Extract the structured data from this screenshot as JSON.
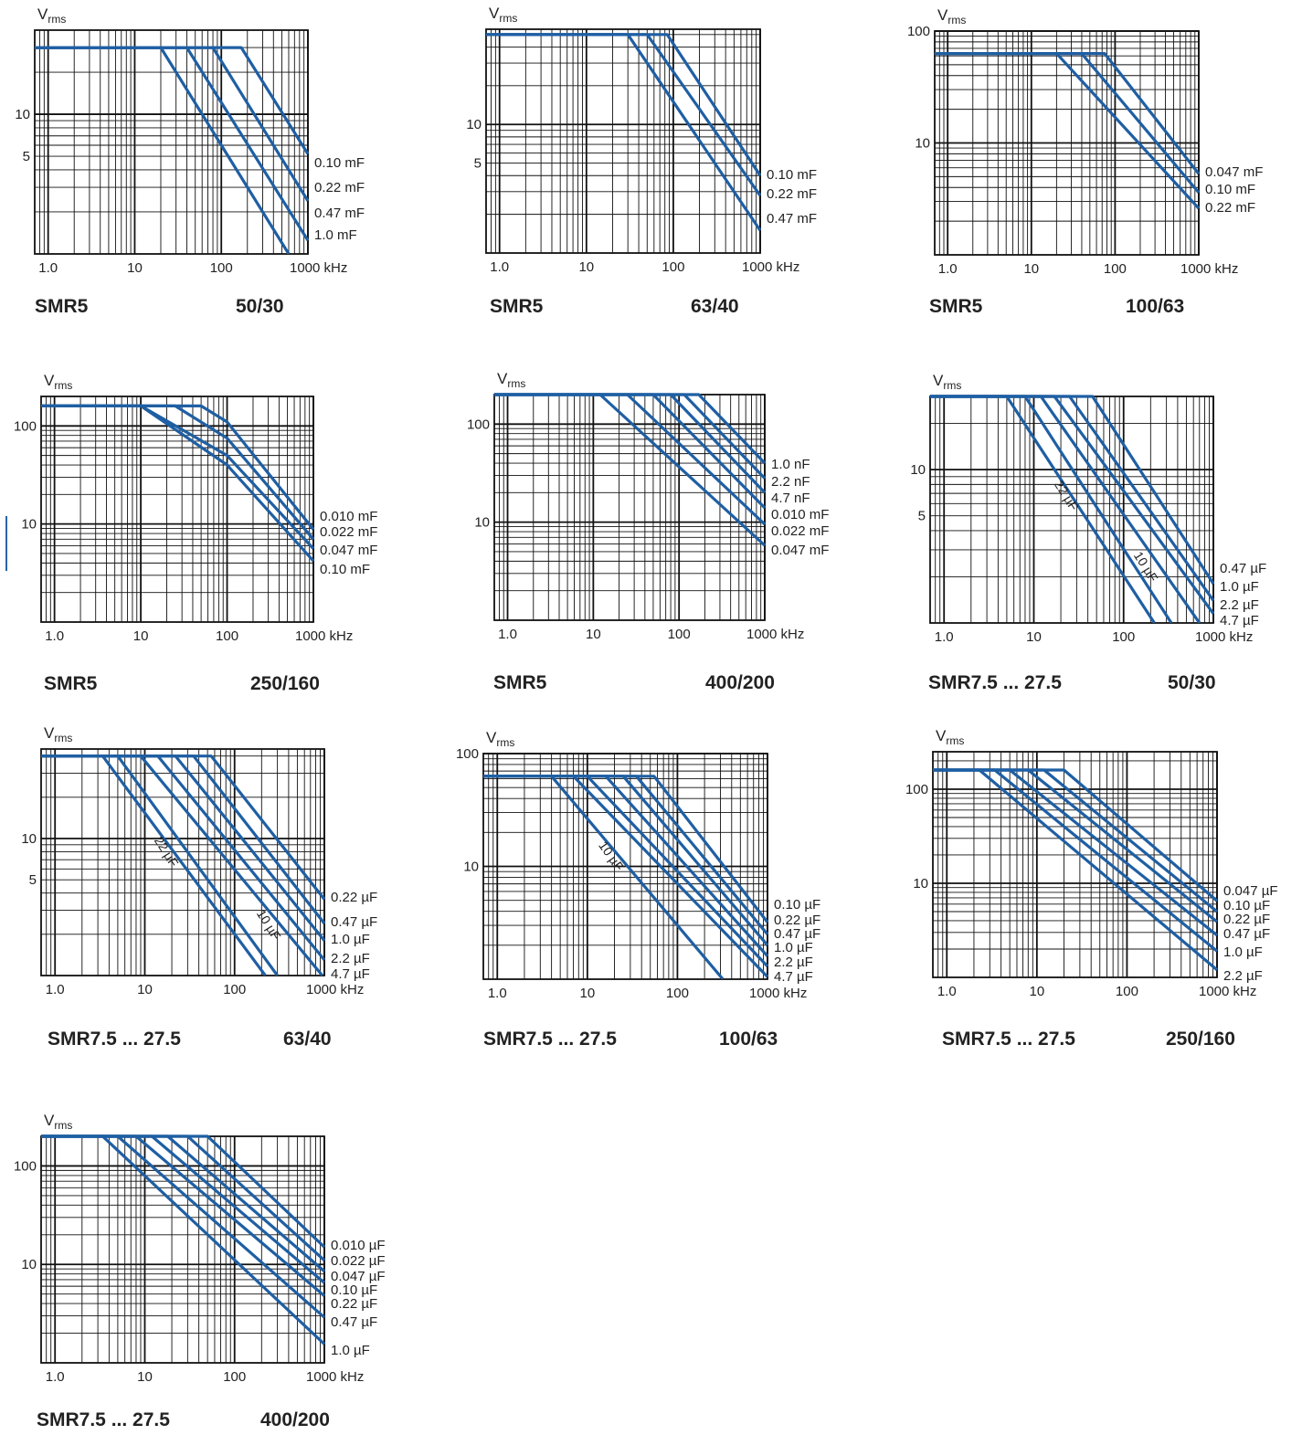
{
  "colors": {
    "curve": "#1f5fa3",
    "grid": "#111111",
    "text": "#222222",
    "accent_mark": "#2a63a8"
  },
  "y_axis_symbol": {
    "main": "V",
    "subscript": "rms"
  },
  "x_unit": "kHz",
  "x_ticks": [
    "1.0",
    "10",
    "100",
    "1000"
  ],
  "chart_data": [
    {
      "type": "line",
      "series_name": "SMR5",
      "rating": "50/30",
      "x_scale": "log",
      "y_scale": "log",
      "xlim": [
        0.7,
        1000
      ],
      "ylim": [
        1,
        40
      ],
      "y_ticks": [
        {
          "value": 10,
          "label": "10"
        },
        {
          "value": 5,
          "label": "5"
        }
      ],
      "series": [
        {
          "name": "0.10 mF",
          "points": [
            [
              0.7,
              30
            ],
            [
              170,
              30
            ],
            [
              1000,
              5.2
            ]
          ]
        },
        {
          "name": "0.22 mF",
          "points": [
            [
              0.7,
              30
            ],
            [
              80,
              30
            ],
            [
              1000,
              2.4
            ]
          ]
        },
        {
          "name": "0.47 mF",
          "points": [
            [
              0.7,
              30
            ],
            [
              40,
              30
            ],
            [
              1000,
              1.25
            ]
          ]
        },
        {
          "name": "1.0 mF",
          "points": [
            [
              0.7,
              30
            ],
            [
              20,
              30
            ],
            [
              600,
              1.0
            ]
          ]
        }
      ]
    },
    {
      "type": "line",
      "series_name": "SMR5",
      "rating": "63/40",
      "x_scale": "log",
      "y_scale": "log",
      "xlim": [
        0.7,
        1000
      ],
      "ylim": [
        1,
        55
      ],
      "y_ticks": [
        {
          "value": 10,
          "label": "10"
        },
        {
          "value": 5,
          "label": "5"
        }
      ],
      "series": [
        {
          "name": "0.10 mF",
          "points": [
            [
              0.7,
              50
            ],
            [
              85,
              50
            ],
            [
              1000,
              4.0
            ]
          ]
        },
        {
          "name": "0.22 mF",
          "points": [
            [
              0.7,
              50
            ],
            [
              50,
              50
            ],
            [
              1000,
              2.8
            ]
          ]
        },
        {
          "name": "0.47 mF",
          "points": [
            [
              0.7,
              50
            ],
            [
              30,
              50
            ],
            [
              1000,
              1.5
            ]
          ]
        }
      ]
    },
    {
      "type": "line",
      "series_name": "SMR5",
      "rating": "100/63",
      "x_scale": "log",
      "y_scale": "log",
      "xlim": [
        0.7,
        1000
      ],
      "ylim": [
        1,
        100
      ],
      "y_ticks": [
        {
          "value": 100,
          "label": "100"
        },
        {
          "value": 10,
          "label": "10"
        }
      ],
      "series": [
        {
          "name": "0.047 mF",
          "points": [
            [
              0.7,
              63
            ],
            [
              75,
              63
            ],
            [
              1000,
              5.3
            ]
          ]
        },
        {
          "name": "0.10 mF",
          "points": [
            [
              0.7,
              63
            ],
            [
              40,
              63
            ],
            [
              1000,
              3.6
            ]
          ]
        },
        {
          "name": "0.22 mF",
          "points": [
            [
              0.7,
              63
            ],
            [
              20,
              63
            ],
            [
              1000,
              2.6
            ]
          ]
        }
      ]
    },
    {
      "type": "line",
      "series_name": "SMR5",
      "rating": "250/160",
      "x_scale": "log",
      "y_scale": "log",
      "xlim": [
        0.7,
        1000
      ],
      "ylim": [
        1,
        200
      ],
      "y_ticks": [
        {
          "value": 100,
          "label": "100"
        },
        {
          "value": 10,
          "label": "10"
        }
      ],
      "series": [
        {
          "name": "0.010 mF",
          "points": [
            [
              0.7,
              160
            ],
            [
              50,
              160
            ],
            [
              100,
              110
            ],
            [
              1000,
              8.8
            ]
          ]
        },
        {
          "name": "0.022 mF",
          "points": [
            [
              0.7,
              160
            ],
            [
              25,
              160
            ],
            [
              100,
              75
            ],
            [
              1000,
              7.0
            ]
          ]
        },
        {
          "name": "0.047 mF",
          "points": [
            [
              0.7,
              160
            ],
            [
              10,
              160
            ],
            [
              100,
              50
            ],
            [
              1000,
              5.6
            ]
          ]
        },
        {
          "name": "0.10 mF",
          "points": [
            [
              0.7,
              160
            ],
            [
              10,
              160
            ],
            [
              100,
              40
            ],
            [
              1000,
              4.2
            ]
          ]
        }
      ]
    },
    {
      "type": "line",
      "series_name": "SMR5",
      "rating": "400/200",
      "x_scale": "log",
      "y_scale": "log",
      "xlim": [
        0.7,
        1000
      ],
      "ylim": [
        1,
        200
      ],
      "y_ticks": [
        {
          "value": 100,
          "label": "100"
        },
        {
          "value": 10,
          "label": "10"
        }
      ],
      "series": [
        {
          "name": "1.0 nF",
          "points": [
            [
              0.7,
              200
            ],
            [
              170,
              200
            ],
            [
              1000,
              40
            ]
          ]
        },
        {
          "name": "2.2 nF",
          "points": [
            [
              0.7,
              200
            ],
            [
              115,
              200
            ],
            [
              1000,
              28
            ]
          ]
        },
        {
          "name": "4.7 nF",
          "points": [
            [
              0.7,
              200
            ],
            [
              80,
              200
            ],
            [
              1000,
              20
            ]
          ]
        },
        {
          "name": "0.010 mF",
          "points": [
            [
              0.7,
              200
            ],
            [
              50,
              200
            ],
            [
              1000,
              14
            ]
          ]
        },
        {
          "name": "0.022 mF",
          "points": [
            [
              0.7,
              200
            ],
            [
              25,
              200
            ],
            [
              1000,
              9.5
            ]
          ]
        },
        {
          "name": "0.047 mF",
          "points": [
            [
              0.7,
              200
            ],
            [
              12,
              200
            ],
            [
              1000,
              5.8
            ]
          ]
        }
      ]
    },
    {
      "type": "line",
      "series_name": "SMR7.5 ... 27.5",
      "rating": "50/30",
      "x_scale": "log",
      "y_scale": "log",
      "xlim": [
        0.7,
        1000
      ],
      "ylim": [
        1,
        30
      ],
      "y_ticks": [
        {
          "value": 10,
          "label": "10"
        },
        {
          "value": 5,
          "label": "5"
        }
      ],
      "annotations": [
        "22 µF",
        "10 µF"
      ],
      "series": [
        {
          "name": "0.47 µF",
          "points": [
            [
              0.7,
              30
            ],
            [
              45,
              30
            ],
            [
              1000,
              1.8
            ]
          ]
        },
        {
          "name": "1.0 µF",
          "points": [
            [
              0.7,
              30
            ],
            [
              25,
              30
            ],
            [
              1000,
              1.4
            ]
          ]
        },
        {
          "name": "2.2 µF",
          "points": [
            [
              0.7,
              30
            ],
            [
              17,
              30
            ],
            [
              1000,
              1.15
            ]
          ]
        },
        {
          "name": "4.7 µF",
          "points": [
            [
              0.7,
              30
            ],
            [
              12,
              30
            ],
            [
              700,
              1.0
            ]
          ]
        },
        {
          "name": "10 µF",
          "points": [
            [
              0.7,
              30
            ],
            [
              8,
              30
            ],
            [
              340,
              1.0
            ]
          ]
        },
        {
          "name": "22 µF",
          "points": [
            [
              0.7,
              30
            ],
            [
              5,
              30
            ],
            [
              220,
              1.0
            ]
          ]
        }
      ]
    },
    {
      "type": "line",
      "series_name": "SMR7.5 ... 27.5",
      "rating": "63/40",
      "x_scale": "log",
      "y_scale": "log",
      "xlim": [
        0.7,
        1000
      ],
      "ylim": [
        1,
        45
      ],
      "y_ticks": [
        {
          "value": 10,
          "label": "10"
        },
        {
          "value": 5,
          "label": "5"
        }
      ],
      "annotations": [
        "22 µF",
        "10 µF"
      ],
      "series": [
        {
          "name": "0.22 µF",
          "points": [
            [
              0.7,
              40
            ],
            [
              55,
              40
            ],
            [
              1000,
              3.6
            ]
          ]
        },
        {
          "name": "0.47 µF",
          "points": [
            [
              0.7,
              40
            ],
            [
              35,
              40
            ],
            [
              1000,
              2.4
            ]
          ]
        },
        {
          "name": "1.0 µF",
          "points": [
            [
              0.7,
              40
            ],
            [
              22,
              40
            ],
            [
              1000,
              1.8
            ]
          ]
        },
        {
          "name": "2.2 µF",
          "points": [
            [
              0.7,
              40
            ],
            [
              14,
              40
            ],
            [
              1000,
              1.3
            ]
          ]
        },
        {
          "name": "4.7 µF",
          "points": [
            [
              0.7,
              40
            ],
            [
              9,
              40
            ],
            [
              950,
              1.0
            ]
          ]
        },
        {
          "name": "10 µF",
          "points": [
            [
              0.7,
              40
            ],
            [
              5,
              40
            ],
            [
              300,
              1.0
            ]
          ]
        },
        {
          "name": "22 µF",
          "points": [
            [
              0.7,
              40
            ],
            [
              3.4,
              40
            ],
            [
              220,
              1.0
            ]
          ]
        }
      ]
    },
    {
      "type": "line",
      "series_name": "SMR7.5 ... 27.5",
      "rating": "100/63",
      "x_scale": "log",
      "y_scale": "log",
      "xlim": [
        0.7,
        1000
      ],
      "ylim": [
        1,
        100
      ],
      "y_ticks": [
        {
          "value": 100,
          "label": "100"
        },
        {
          "value": 10,
          "label": "10"
        }
      ],
      "annotations": [
        "10 µF"
      ],
      "series": [
        {
          "name": "0.10 µF",
          "points": [
            [
              0.7,
              63
            ],
            [
              55,
              63
            ],
            [
              1000,
              3.2
            ]
          ]
        },
        {
          "name": "0.22 µF",
          "points": [
            [
              0.7,
              63
            ],
            [
              35,
              63
            ],
            [
              1000,
              2.5
            ]
          ]
        },
        {
          "name": "0.47 µF",
          "points": [
            [
              0.7,
              63
            ],
            [
              25,
              63
            ],
            [
              1000,
              2.0
            ]
          ]
        },
        {
          "name": "1.0 µF",
          "points": [
            [
              0.7,
              63
            ],
            [
              16,
              63
            ],
            [
              1000,
              1.6
            ]
          ]
        },
        {
          "name": "2.2 µF",
          "points": [
            [
              0.7,
              63
            ],
            [
              10,
              63
            ],
            [
              1000,
              1.3
            ]
          ]
        },
        {
          "name": "4.7 µF",
          "points": [
            [
              0.7,
              63
            ],
            [
              7,
              63
            ],
            [
              1000,
              1.05
            ]
          ]
        },
        {
          "name": "10 µF",
          "points": [
            [
              0.7,
              63
            ],
            [
              4,
              63
            ],
            [
              320,
              1.0
            ]
          ]
        }
      ]
    },
    {
      "type": "line",
      "series_name": "SMR7.5 ... 27.5",
      "rating": "250/160",
      "x_scale": "log",
      "y_scale": "log",
      "xlim": [
        0.7,
        1000
      ],
      "ylim": [
        1,
        250
      ],
      "y_ticks": [
        {
          "value": 100,
          "label": "100"
        },
        {
          "value": 10,
          "label": "10"
        }
      ],
      "series": [
        {
          "name": "0.047 µF",
          "points": [
            [
              0.7,
              160
            ],
            [
              20,
              160
            ],
            [
              1000,
              6.5
            ]
          ]
        },
        {
          "name": "0.10 µF",
          "points": [
            [
              0.7,
              160
            ],
            [
              12,
              160
            ],
            [
              1000,
              5.0
            ]
          ]
        },
        {
          "name": "0.22 µF",
          "points": [
            [
              0.7,
              160
            ],
            [
              8,
              160
            ],
            [
              1000,
              3.9
            ]
          ]
        },
        {
          "name": "0.47 µF",
          "points": [
            [
              0.7,
              160
            ],
            [
              5,
              160
            ],
            [
              1000,
              2.8
            ]
          ]
        },
        {
          "name": "1.0 µF",
          "points": [
            [
              0.7,
              160
            ],
            [
              3.4,
              160
            ],
            [
              1000,
              1.9
            ]
          ]
        },
        {
          "name": "2.2 µF",
          "points": [
            [
              0.7,
              160
            ],
            [
              2.3,
              160
            ],
            [
              1000,
              1.2
            ]
          ]
        }
      ]
    },
    {
      "type": "line",
      "series_name": "SMR7.5 ... 27.5",
      "rating": "400/200",
      "x_scale": "log",
      "y_scale": "log",
      "xlim": [
        0.7,
        1000
      ],
      "ylim": [
        1,
        200
      ],
      "y_ticks": [
        {
          "value": 100,
          "label": "100"
        },
        {
          "value": 10,
          "label": "10"
        }
      ],
      "series": [
        {
          "name": "0.010 µF",
          "points": [
            [
              0.7,
              200
            ],
            [
              50,
              200
            ],
            [
              1000,
              15
            ]
          ]
        },
        {
          "name": "0.022 µF",
          "points": [
            [
              0.7,
              200
            ],
            [
              30,
              200
            ],
            [
              1000,
              11
            ]
          ]
        },
        {
          "name": "0.047 µF",
          "points": [
            [
              0.7,
              200
            ],
            [
              18,
              200
            ],
            [
              1000,
              8.5
            ]
          ]
        },
        {
          "name": "0.10 µF",
          "points": [
            [
              0.7,
              200
            ],
            [
              12,
              200
            ],
            [
              1000,
              6.5
            ]
          ]
        },
        {
          "name": "0.22 µF",
          "points": [
            [
              0.7,
              200
            ],
            [
              8,
              200
            ],
            [
              1000,
              4.8
            ]
          ]
        },
        {
          "name": "0.47 µF",
          "points": [
            [
              0.7,
              200
            ],
            [
              5,
              200
            ],
            [
              1000,
              2.9
            ]
          ]
        },
        {
          "name": "1.0 µF",
          "points": [
            [
              0.7,
              200
            ],
            [
              3.4,
              200
            ],
            [
              1000,
              1.55
            ]
          ]
        }
      ]
    }
  ]
}
